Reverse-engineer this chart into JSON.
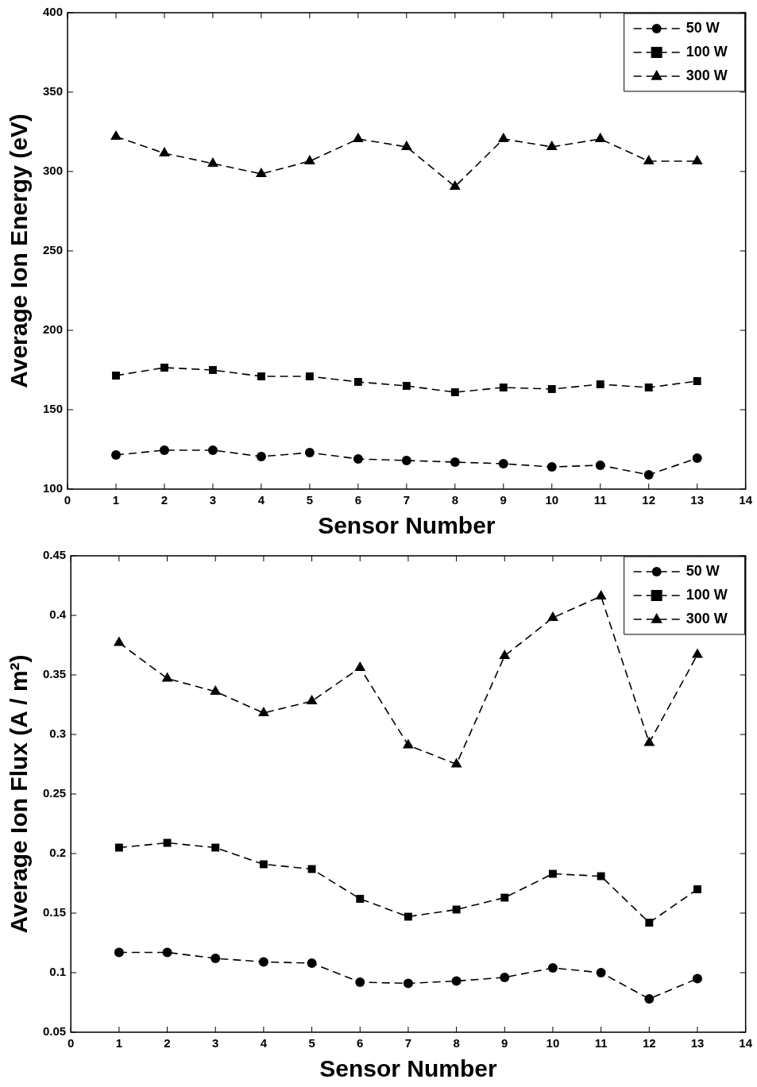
{
  "chart_data": [
    {
      "type": "line",
      "xlabel": "Sensor Number",
      "ylabel": "Average Ion Energy (eV)",
      "x": [
        1,
        2,
        3,
        4,
        5,
        6,
        7,
        8,
        9,
        10,
        11,
        12,
        13
      ],
      "xlim": [
        0,
        14
      ],
      "xticks": [
        0,
        1,
        2,
        3,
        4,
        5,
        6,
        7,
        8,
        9,
        10,
        11,
        12,
        13,
        14
      ],
      "ylim": [
        100,
        400
      ],
      "yticks": [
        100,
        150,
        200,
        250,
        300,
        350,
        400
      ],
      "grid": false,
      "legend": "top right",
      "line_style": "dashed",
      "series": [
        {
          "name": "50 W",
          "color": "#000000",
          "marker": "circle",
          "values": [
            121.5,
            124.5,
            124.5,
            120.5,
            123,
            119,
            118,
            117,
            116,
            114,
            115,
            109,
            119.5
          ]
        },
        {
          "name": "100 W",
          "color": "#000000",
          "marker": "square",
          "values": [
            171.5,
            176.5,
            175,
            171,
            171,
            167.5,
            165,
            161,
            164,
            163,
            166,
            164,
            168
          ]
        },
        {
          "name": "300 W",
          "color": "#000000",
          "marker": "triangle",
          "values": [
            322,
            311.5,
            305,
            298.5,
            306.5,
            320.5,
            315.5,
            290.5,
            320.5,
            315.5,
            320.5,
            306.5,
            306.5
          ]
        }
      ]
    },
    {
      "type": "line",
      "xlabel": "Sensor Number",
      "ylabel": "Average Ion Flux (A / m²)",
      "x": [
        1,
        2,
        3,
        4,
        5,
        6,
        7,
        8,
        9,
        10,
        11,
        12,
        13
      ],
      "xlim": [
        0,
        14
      ],
      "xticks": [
        0,
        1,
        2,
        3,
        4,
        5,
        6,
        7,
        8,
        9,
        10,
        11,
        12,
        13,
        14
      ],
      "ylim": [
        0.05,
        0.45
      ],
      "yticks": [
        0.05,
        0.1,
        0.15,
        0.2,
        0.25,
        0.3,
        0.35,
        0.4,
        0.45
      ],
      "grid": false,
      "legend": "top right",
      "line_style": "dashed",
      "series": [
        {
          "name": "50 W",
          "color": "#000000",
          "marker": "circle",
          "values": [
            0.117,
            0.117,
            0.112,
            0.109,
            0.108,
            0.092,
            0.091,
            0.093,
            0.096,
            0.104,
            0.1,
            0.078,
            0.095
          ]
        },
        {
          "name": "100 W",
          "color": "#000000",
          "marker": "square",
          "values": [
            0.205,
            0.209,
            0.205,
            0.191,
            0.187,
            0.162,
            0.147,
            0.153,
            0.163,
            0.183,
            0.181,
            0.142,
            0.17
          ]
        },
        {
          "name": "300 W",
          "color": "#000000",
          "marker": "triangle",
          "values": [
            0.377,
            0.347,
            0.336,
            0.318,
            0.328,
            0.356,
            0.291,
            0.275,
            0.366,
            0.398,
            0.416,
            0.293,
            0.367
          ]
        }
      ]
    }
  ]
}
